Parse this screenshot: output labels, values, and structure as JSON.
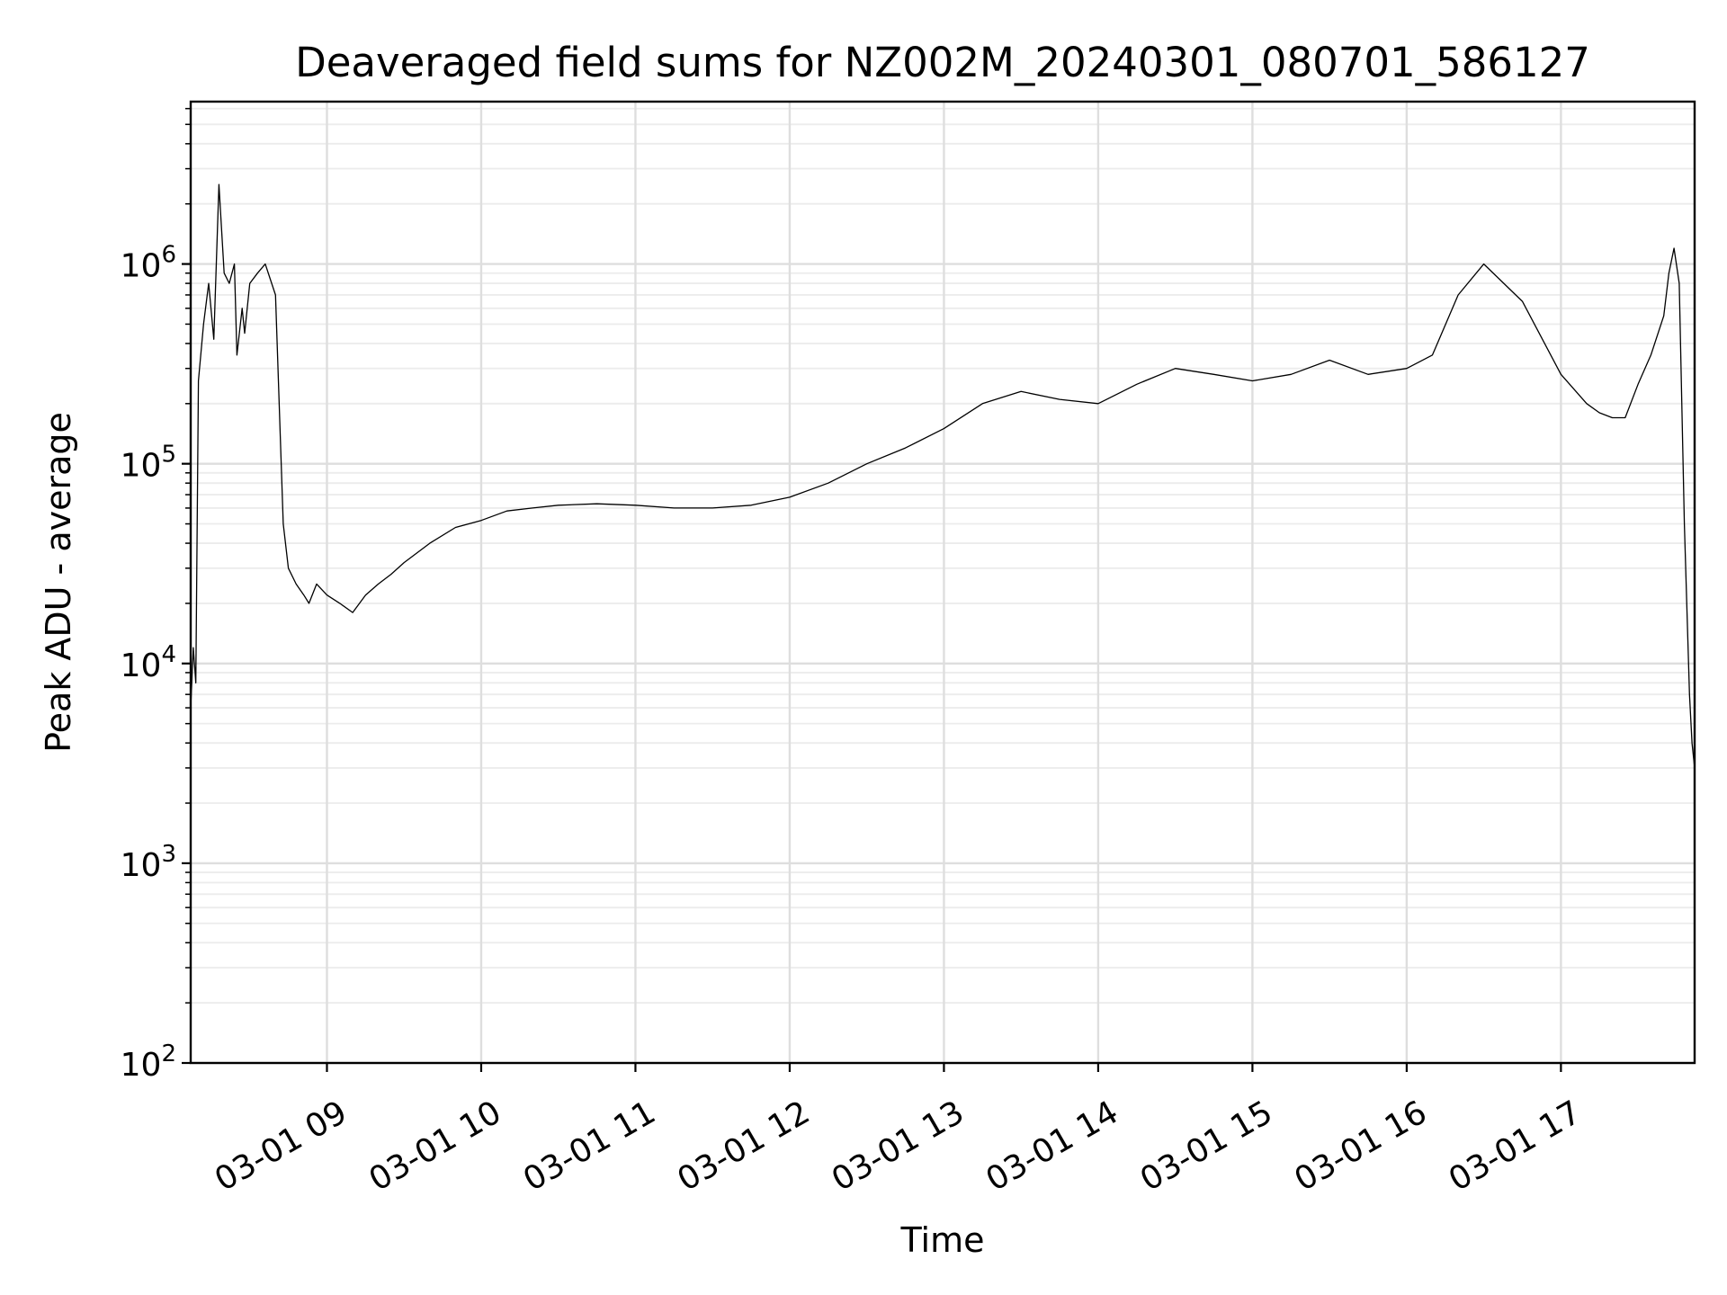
{
  "chart_data": {
    "type": "line",
    "title": "Deaveraged field sums for NZ002M_20240301_080701_586127",
    "xlabel": "Time",
    "ylabel": "Peak ADU - average",
    "yscale": "log",
    "ylim": [
      100,
      6500000
    ],
    "xlim": [
      "2024-03-01 08:07",
      "2024-03-01 17:52"
    ],
    "grid": true,
    "line_color": "#000000",
    "x_ticks": [
      {
        "t": "2024-03-01 09:00",
        "label": "03-01 09"
      },
      {
        "t": "2024-03-01 10:00",
        "label": "03-01 10"
      },
      {
        "t": "2024-03-01 11:00",
        "label": "03-01 11"
      },
      {
        "t": "2024-03-01 12:00",
        "label": "03-01 12"
      },
      {
        "t": "2024-03-01 13:00",
        "label": "03-01 13"
      },
      {
        "t": "2024-03-01 14:00",
        "label": "03-01 14"
      },
      {
        "t": "2024-03-01 15:00",
        "label": "03-01 15"
      },
      {
        "t": "2024-03-01 16:00",
        "label": "03-01 16"
      },
      {
        "t": "2024-03-01 17:00",
        "label": "03-01 17"
      }
    ],
    "y_ticks": [
      {
        "value": 100,
        "base": "10",
        "exp": "2"
      },
      {
        "value": 1000,
        "base": "10",
        "exp": "3"
      },
      {
        "value": 10000,
        "base": "10",
        "exp": "4"
      },
      {
        "value": 100000,
        "base": "10",
        "exp": "5"
      },
      {
        "value": 1000000,
        "base": "10",
        "exp": "6"
      }
    ],
    "series": [
      {
        "x": [
          "2024-03-01 08:07",
          "2024-03-01 08:08",
          "2024-03-01 08:09",
          "2024-03-01 08:10",
          "2024-03-01 08:12",
          "2024-03-01 08:14",
          "2024-03-01 08:16",
          "2024-03-01 08:18",
          "2024-03-01 08:20",
          "2024-03-01 08:22",
          "2024-03-01 08:24",
          "2024-03-01 08:25",
          "2024-03-01 08:27",
          "2024-03-01 08:28",
          "2024-03-01 08:30",
          "2024-03-01 08:33",
          "2024-03-01 08:36",
          "2024-03-01 08:40",
          "2024-03-01 08:43",
          "2024-03-01 08:45",
          "2024-03-01 08:48",
          "2024-03-01 08:51",
          "2024-03-01 08:53",
          "2024-03-01 08:56",
          "2024-03-01 09:00",
          "2024-03-01 09:05",
          "2024-03-01 09:10",
          "2024-03-01 09:15",
          "2024-03-01 09:20",
          "2024-03-01 09:25",
          "2024-03-01 09:30",
          "2024-03-01 09:40",
          "2024-03-01 09:50",
          "2024-03-01 10:00",
          "2024-03-01 10:10",
          "2024-03-01 10:20",
          "2024-03-01 10:30",
          "2024-03-01 10:45",
          "2024-03-01 11:00",
          "2024-03-01 11:15",
          "2024-03-01 11:30",
          "2024-03-01 11:45",
          "2024-03-01 12:00",
          "2024-03-01 12:15",
          "2024-03-01 12:30",
          "2024-03-01 12:45",
          "2024-03-01 13:00",
          "2024-03-01 13:15",
          "2024-03-01 13:30",
          "2024-03-01 13:45",
          "2024-03-01 14:00",
          "2024-03-01 14:15",
          "2024-03-01 14:30",
          "2024-03-01 14:45",
          "2024-03-01 15:00",
          "2024-03-01 15:15",
          "2024-03-01 15:30",
          "2024-03-01 15:45",
          "2024-03-01 16:00",
          "2024-03-01 16:10",
          "2024-03-01 16:20",
          "2024-03-01 16:30",
          "2024-03-01 16:45",
          "2024-03-01 17:00",
          "2024-03-01 17:10",
          "2024-03-01 17:15",
          "2024-03-01 17:20",
          "2024-03-01 17:25",
          "2024-03-01 17:30",
          "2024-03-01 17:35",
          "2024-03-01 17:40",
          "2024-03-01 17:42",
          "2024-03-01 17:44",
          "2024-03-01 17:46",
          "2024-03-01 17:48",
          "2024-03-01 17:50",
          "2024-03-01 17:51",
          "2024-03-01 17:52"
        ],
        "y": [
          6000,
          12000,
          8000,
          260000,
          500000,
          800000,
          420000,
          2500000,
          900000,
          800000,
          1000000,
          350000,
          600000,
          450000,
          800000,
          900000,
          1000000,
          700000,
          50000,
          30000,
          25000,
          22000,
          20000,
          25000,
          22000,
          20000,
          18000,
          22000,
          25000,
          28000,
          32000,
          40000,
          48000,
          52000,
          58000,
          60000,
          62000,
          63000,
          62000,
          60000,
          60000,
          62000,
          68000,
          80000,
          100000,
          120000,
          150000,
          200000,
          230000,
          210000,
          200000,
          250000,
          300000,
          280000,
          260000,
          280000,
          330000,
          280000,
          300000,
          350000,
          700000,
          1000000,
          650000,
          280000,
          200000,
          180000,
          170000,
          170000,
          250000,
          350000,
          550000,
          900000,
          1200000,
          800000,
          50000,
          7000,
          4000,
          3000
        ]
      }
    ]
  }
}
